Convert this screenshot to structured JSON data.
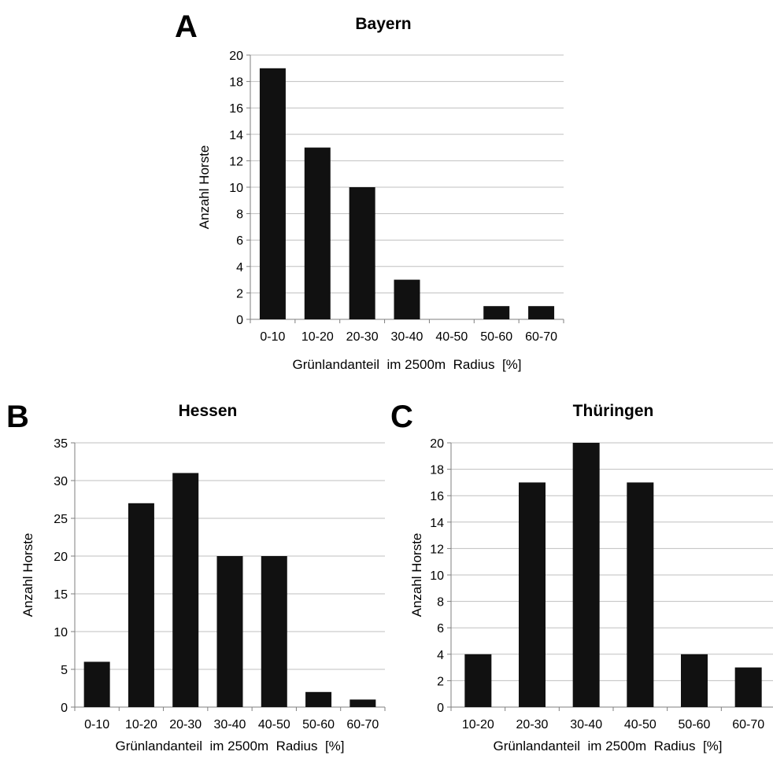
{
  "chart_data": [
    {
      "panel": "A",
      "type": "bar",
      "title": "Bayern",
      "xlabel": "Grünlandanteil  im 2500m  Radius  [%]",
      "ylabel": "Anzahl Horste",
      "categories": [
        "0-10",
        "10-20",
        "20-30",
        "30-40",
        "40-50",
        "50-60",
        "60-70"
      ],
      "values": [
        19,
        13,
        10,
        3,
        0,
        1,
        1
      ],
      "ylim": [
        0,
        20
      ],
      "yticks": [
        0,
        2,
        4,
        6,
        8,
        10,
        12,
        14,
        16,
        18,
        20
      ],
      "grid": true,
      "bar_color": "#111111"
    },
    {
      "panel": "B",
      "type": "bar",
      "title": "Hessen",
      "xlabel": "Grünlandanteil  im 2500m  Radius  [%]",
      "ylabel": "Anzahl Horste",
      "categories": [
        "0-10",
        "10-20",
        "20-30",
        "30-40",
        "40-50",
        "50-60",
        "60-70"
      ],
      "values": [
        6,
        27,
        31,
        20,
        20,
        2,
        1
      ],
      "ylim": [
        0,
        35
      ],
      "yticks": [
        0,
        5,
        10,
        15,
        20,
        25,
        30,
        35
      ],
      "grid": true,
      "bar_color": "#111111"
    },
    {
      "panel": "C",
      "type": "bar",
      "title": "Thüringen",
      "xlabel": "Grünlandanteil  im 2500m  Radius  [%]",
      "ylabel": "Anzahl Horste",
      "categories": [
        "10-20",
        "20-30",
        "30-40",
        "40-50",
        "50-60",
        "60-70"
      ],
      "values": [
        4,
        17,
        20,
        17,
        4,
        3
      ],
      "ylim": [
        0,
        20
      ],
      "yticks": [
        0,
        2,
        4,
        6,
        8,
        10,
        12,
        14,
        16,
        18,
        20
      ],
      "grid": true,
      "bar_color": "#111111"
    }
  ],
  "colors": {
    "bar": "#111111",
    "grid": "#bfbfbf",
    "axis": "#7f7f7f",
    "text": "#000000"
  }
}
